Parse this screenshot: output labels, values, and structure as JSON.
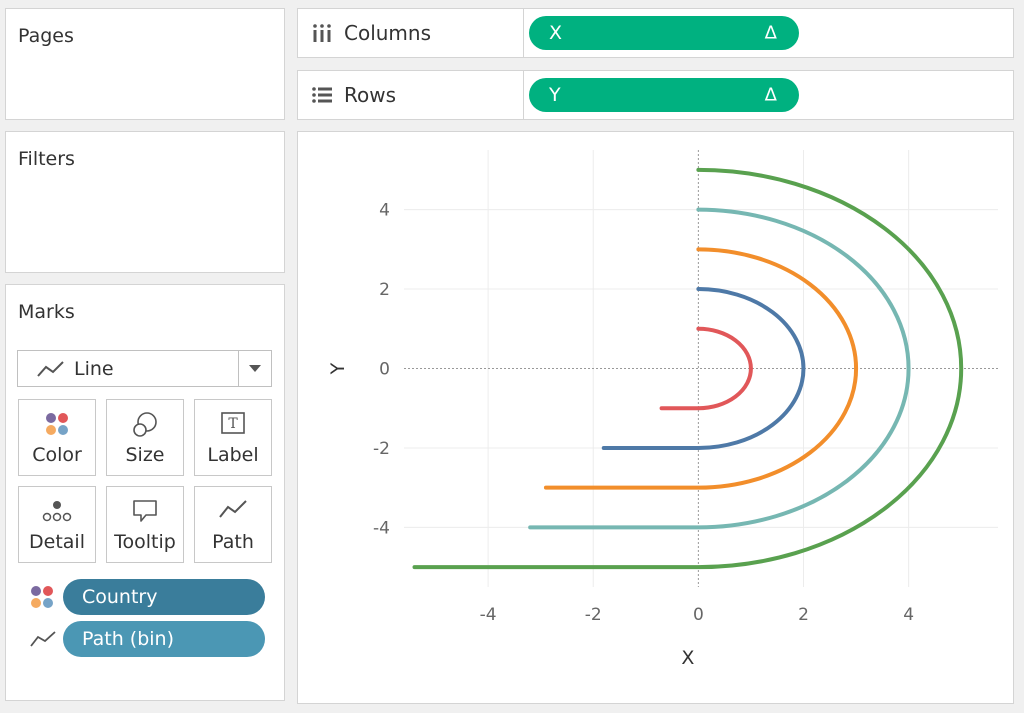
{
  "pages": {
    "title": "Pages"
  },
  "filters": {
    "title": "Filters"
  },
  "columns": {
    "label": "Columns",
    "pill": "X",
    "pill_delta": "Δ"
  },
  "rows": {
    "label": "Rows",
    "pill": "Y",
    "pill_delta": "Δ"
  },
  "marks": {
    "title": "Marks",
    "type": "Line",
    "buttons": [
      {
        "label": "Color",
        "icon": "color-dots-icon"
      },
      {
        "label": "Size",
        "icon": "size-circles-icon"
      },
      {
        "label": "Label",
        "icon": "label-t-icon"
      },
      {
        "label": "Detail",
        "icon": "detail-dots-icon"
      },
      {
        "label": "Tooltip",
        "icon": "tooltip-bubble-icon"
      },
      {
        "label": "Path",
        "icon": "path-line-icon"
      }
    ],
    "fields": [
      {
        "label": "Country",
        "icon": "color-dots-icon",
        "color": "#3a7d9b"
      },
      {
        "label": "Path (bin)",
        "icon": "path-line-icon",
        "color": "#4b97b4"
      }
    ]
  },
  "colors": {
    "pill_green": "#00b180",
    "series": [
      "#e15759",
      "#4e79a7",
      "#f28e2b",
      "#76b7b2",
      "#59a14f"
    ]
  },
  "chart_data": {
    "type": "line",
    "xlabel": "X",
    "ylabel": "Y",
    "xlim": [
      -5.6,
      5.7
    ],
    "ylim": [
      -5.5,
      5.5
    ],
    "x_ticks": [
      "-4",
      "-2",
      "0",
      "2",
      "4"
    ],
    "y_ticks": [
      "4",
      "2",
      "0",
      "-2",
      "-4"
    ],
    "grid": true,
    "series": [
      {
        "radius": 1,
        "tail_x": -0.7
      },
      {
        "radius": 2,
        "tail_x": -1.8
      },
      {
        "radius": 3,
        "tail_x": -2.9
      },
      {
        "radius": 4,
        "tail_x": -3.2
      },
      {
        "radius": 5,
        "tail_x": -5.4
      }
    ]
  }
}
